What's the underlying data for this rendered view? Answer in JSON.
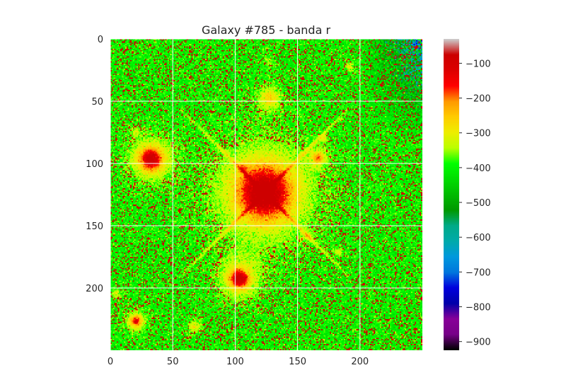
{
  "chart_data": {
    "type": "heatmap",
    "title": "Galaxy #785 - banda r",
    "xlabel": "",
    "ylabel": "",
    "image_size": [
      250,
      250
    ],
    "xlim": [
      0,
      250
    ],
    "ylim": [
      250,
      0
    ],
    "x_ticks": [
      0,
      50,
      100,
      150,
      200
    ],
    "y_ticks": [
      0,
      50,
      100,
      150,
      200
    ],
    "grid": true,
    "colormap": "nipy_spectral",
    "colorbar": {
      "range": [
        -925,
        -30
      ],
      "ticks": [
        -100,
        -200,
        -300,
        -400,
        -500,
        -600,
        -700,
        -800,
        -900
      ],
      "tick_labels": [
        "−100",
        "−200",
        "−300",
        "−400",
        "−500",
        "−600",
        "−700",
        "−800",
        "−900"
      ]
    },
    "background_level": -400,
    "sources": [
      {
        "x": 123,
        "y": 123,
        "peak": -110,
        "size": 14,
        "halo": 30,
        "spikes": true
      },
      {
        "x": 32,
        "y": 96,
        "peak": -140,
        "size": 6,
        "halo": 14
      },
      {
        "x": 103,
        "y": 192,
        "peak": -140,
        "size": 5,
        "halo": 13
      },
      {
        "x": 20,
        "y": 226,
        "peak": -200,
        "size": 3,
        "halo": 7
      },
      {
        "x": 127,
        "y": 47,
        "peak": -300,
        "size": 5,
        "halo": 10
      },
      {
        "x": 166,
        "y": 95,
        "peak": -260,
        "size": 3,
        "halo": 7
      },
      {
        "x": 106,
        "y": 103,
        "peak": -320,
        "size": 2,
        "halo": 5
      },
      {
        "x": 158,
        "y": 158,
        "peak": -340,
        "size": 2,
        "halo": 4
      },
      {
        "x": 182,
        "y": 171,
        "peak": -340,
        "size": 2,
        "halo": 4
      },
      {
        "x": 67,
        "y": 230,
        "peak": -320,
        "size": 3,
        "halo": 6
      },
      {
        "x": 4,
        "y": 204,
        "peak": -330,
        "size": 2,
        "halo": 5
      },
      {
        "x": 191,
        "y": 22,
        "peak": -320,
        "size": 2,
        "halo": 4
      },
      {
        "x": 170,
        "y": 79,
        "peak": -340,
        "size": 2,
        "halo": 4
      },
      {
        "x": 20,
        "y": 74,
        "peak": -350,
        "size": 2,
        "halo": 4
      },
      {
        "x": 127,
        "y": 18,
        "peak": -350,
        "size": 2,
        "halo": 4
      }
    ]
  }
}
